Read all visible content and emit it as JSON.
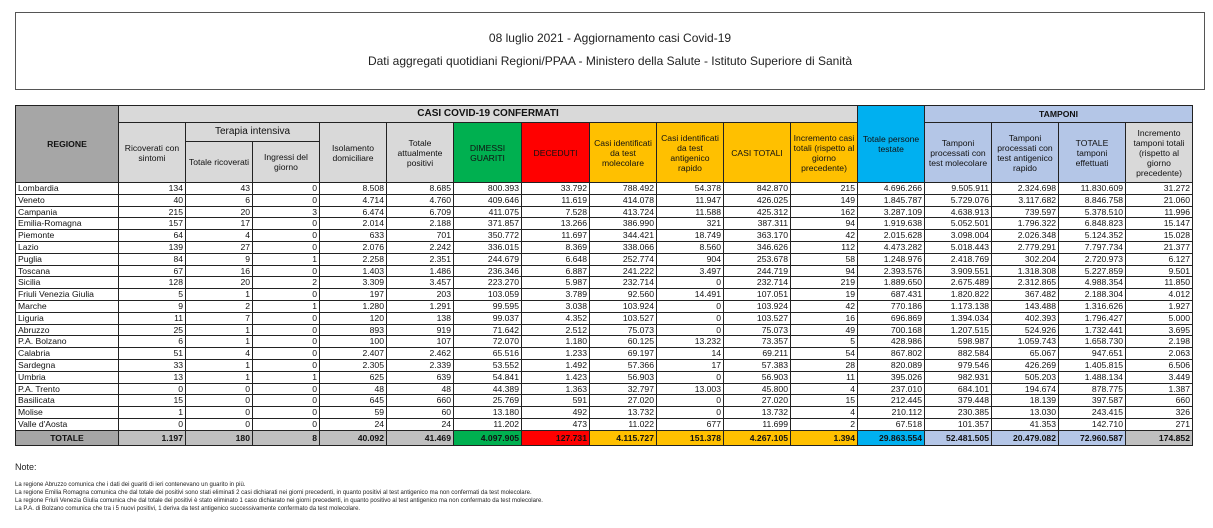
{
  "title": {
    "line1": "08 luglio 2021 - Aggiornamento casi Covid-19",
    "line2": "Dati aggregati quotidiani Regioni/PPAA - Ministero della Salute - Istituto Superiore di Sanità"
  },
  "headers": {
    "regione": "REGIONE",
    "casi_group": "CASI COVID-19 CONFERMATI",
    "terapia_group": "Terapia intensiva",
    "tamponi_group": "TAMPONI",
    "cols": [
      "Ricoverati con sintomi",
      "Totale ricoverati",
      "Ingressi del giorno",
      "Isolamento domiciliare",
      "Totale attualmente positivi",
      "DIMESSI GUARITI",
      "DECEDUTI",
      "Casi identificati da test molecolare",
      "Casi identificati da test antigenico rapido",
      "CASI TOTALI",
      "Incremento casi totali (rispetto al giorno precedente)",
      "Totale persone testate",
      "Tamponi processati con test molecolare",
      "Tamponi processati con test antigenico rapido",
      "TOTALE tamponi effettuati",
      "Incremento tamponi totali (rispetto al giorno precedente)"
    ]
  },
  "colors": {
    "green": "#00b050",
    "red": "#ff0000",
    "yellow": "#ffc000",
    "blue": "#00b0f0",
    "light_blue": "#b4c6e7",
    "gray": "#d9d9d9"
  },
  "rows": [
    {
      "region": "Lombardia",
      "values": [
        "134",
        "43",
        "0",
        "8.508",
        "8.685",
        "800.393",
        "33.792",
        "788.492",
        "54.378",
        "842.870",
        "215",
        "4.696.266",
        "9.505.911",
        "2.324.698",
        "11.830.609",
        "31.272"
      ]
    },
    {
      "region": "Veneto",
      "values": [
        "40",
        "6",
        "0",
        "4.714",
        "4.760",
        "409.646",
        "11.619",
        "414.078",
        "11.947",
        "426.025",
        "149",
        "1.845.787",
        "5.729.076",
        "3.117.682",
        "8.846.758",
        "21.060"
      ]
    },
    {
      "region": "Campania",
      "values": [
        "215",
        "20",
        "3",
        "6.474",
        "6.709",
        "411.075",
        "7.528",
        "413.724",
        "11.588",
        "425.312",
        "162",
        "3.287.109",
        "4.638.913",
        "739.597",
        "5.378.510",
        "11.996"
      ]
    },
    {
      "region": "Emilia-Romagna",
      "values": [
        "157",
        "17",
        "0",
        "2.014",
        "2.188",
        "371.857",
        "13.266",
        "386.990",
        "321",
        "387.311",
        "94",
        "1.919.638",
        "5.052.501",
        "1.796.322",
        "6.848.823",
        "15.147"
      ]
    },
    {
      "region": "Piemonte",
      "values": [
        "64",
        "4",
        "0",
        "633",
        "701",
        "350.772",
        "11.697",
        "344.421",
        "18.749",
        "363.170",
        "42",
        "2.015.628",
        "3.098.004",
        "2.026.348",
        "5.124.352",
        "15.028"
      ]
    },
    {
      "region": "Lazio",
      "values": [
        "139",
        "27",
        "0",
        "2.076",
        "2.242",
        "336.015",
        "8.369",
        "338.066",
        "8.560",
        "346.626",
        "112",
        "4.473.282",
        "5.018.443",
        "2.779.291",
        "7.797.734",
        "21.377"
      ]
    },
    {
      "region": "Puglia",
      "values": [
        "84",
        "9",
        "1",
        "2.258",
        "2.351",
        "244.679",
        "6.648",
        "252.774",
        "904",
        "253.678",
        "58",
        "1.248.976",
        "2.418.769",
        "302.204",
        "2.720.973",
        "6.127"
      ]
    },
    {
      "region": "Toscana",
      "values": [
        "67",
        "16",
        "0",
        "1.403",
        "1.486",
        "236.346",
        "6.887",
        "241.222",
        "3.497",
        "244.719",
        "94",
        "2.393.576",
        "3.909.551",
        "1.318.308",
        "5.227.859",
        "9.501"
      ]
    },
    {
      "region": "Sicilia",
      "values": [
        "128",
        "20",
        "2",
        "3.309",
        "3.457",
        "223.270",
        "5.987",
        "232.714",
        "0",
        "232.714",
        "219",
        "1.889.650",
        "2.675.489",
        "2.312.865",
        "4.988.354",
        "11.850"
      ]
    },
    {
      "region": "Friuli Venezia Giulia",
      "values": [
        "5",
        "1",
        "0",
        "197",
        "203",
        "103.059",
        "3.789",
        "92.560",
        "14.491",
        "107.051",
        "19",
        "687.431",
        "1.820.822",
        "367.482",
        "2.188.304",
        "4.012"
      ]
    },
    {
      "region": "Marche",
      "values": [
        "9",
        "2",
        "1",
        "1.280",
        "1.291",
        "99.595",
        "3.038",
        "103.924",
        "0",
        "103.924",
        "42",
        "770.186",
        "1.173.138",
        "143.488",
        "1.316.626",
        "1.927"
      ]
    },
    {
      "region": "Liguria",
      "values": [
        "11",
        "7",
        "0",
        "120",
        "138",
        "99.037",
        "4.352",
        "103.527",
        "0",
        "103.527",
        "16",
        "696.869",
        "1.394.034",
        "402.393",
        "1.796.427",
        "5.000"
      ]
    },
    {
      "region": "Abruzzo",
      "values": [
        "25",
        "1",
        "0",
        "893",
        "919",
        "71.642",
        "2.512",
        "75.073",
        "0",
        "75.073",
        "49",
        "700.168",
        "1.207.515",
        "524.926",
        "1.732.441",
        "3.695"
      ]
    },
    {
      "region": "P.A. Bolzano",
      "values": [
        "6",
        "1",
        "0",
        "100",
        "107",
        "72.070",
        "1.180",
        "60.125",
        "13.232",
        "73.357",
        "5",
        "428.986",
        "598.987",
        "1.059.743",
        "1.658.730",
        "2.198"
      ]
    },
    {
      "region": "Calabria",
      "values": [
        "51",
        "4",
        "0",
        "2.407",
        "2.462",
        "65.516",
        "1.233",
        "69.197",
        "14",
        "69.211",
        "54",
        "867.802",
        "882.584",
        "65.067",
        "947.651",
        "2.063"
      ]
    },
    {
      "region": "Sardegna",
      "values": [
        "33",
        "1",
        "0",
        "2.305",
        "2.339",
        "53.552",
        "1.492",
        "57.366",
        "17",
        "57.383",
        "28",
        "820.089",
        "979.546",
        "426.269",
        "1.405.815",
        "6.506"
      ]
    },
    {
      "region": "Umbria",
      "values": [
        "13",
        "1",
        "1",
        "625",
        "639",
        "54.841",
        "1.423",
        "56.903",
        "0",
        "56.903",
        "11",
        "395.026",
        "982.931",
        "505.203",
        "1.488.134",
        "3.449"
      ]
    },
    {
      "region": "P.A. Trento",
      "values": [
        "0",
        "0",
        "0",
        "48",
        "48",
        "44.389",
        "1.363",
        "32.797",
        "13.003",
        "45.800",
        "4",
        "237.010",
        "684.101",
        "194.674",
        "878.775",
        "1.387"
      ]
    },
    {
      "region": "Basilicata",
      "values": [
        "15",
        "0",
        "0",
        "645",
        "660",
        "25.769",
        "591",
        "27.020",
        "0",
        "27.020",
        "15",
        "212.445",
        "379.448",
        "18.139",
        "397.587",
        "660"
      ]
    },
    {
      "region": "Molise",
      "values": [
        "1",
        "0",
        "0",
        "59",
        "60",
        "13.180",
        "492",
        "13.732",
        "0",
        "13.732",
        "4",
        "210.112",
        "230.385",
        "13.030",
        "243.415",
        "326"
      ]
    },
    {
      "region": "Valle d'Aosta",
      "values": [
        "0",
        "0",
        "0",
        "24",
        "24",
        "11.202",
        "473",
        "11.022",
        "677",
        "11.699",
        "2",
        "67.518",
        "101.357",
        "41.353",
        "142.710",
        "271"
      ]
    }
  ],
  "total": {
    "region": "TOTALE",
    "values": [
      "1.197",
      "180",
      "8",
      "40.092",
      "41.469",
      "4.097.905",
      "127.731",
      "4.115.727",
      "151.378",
      "4.267.105",
      "1.394",
      "29.863.554",
      "52.481.505",
      "20.479.082",
      "72.960.587",
      "174.852"
    ]
  },
  "notes": {
    "title": "Note:",
    "lines": [
      "La regione Abruzzo comunica che i dati dei guariti di ieri contenevano un guarito in più.",
      "La regione Emilia Romagna comunica che dal totale dei positivi sono stati eliminati 2 casi dichiarati nei giorni precedenti, in quanto positivi al test antigenico ma non confermati da test molecolare.",
      "La regione Friuli Venezia Giulia comunica che dal totale dei positivi è stato eliminato 1 caso dichiarato nei giorni precedenti, in quanto positivo al test antigenico ma non confermato da test molecolare.",
      "La P.A. di Bolzano comunica che tra i 5 nuovi positivi, 1 deriva da test antigenico successivamente confermato da test molecolare."
    ]
  }
}
